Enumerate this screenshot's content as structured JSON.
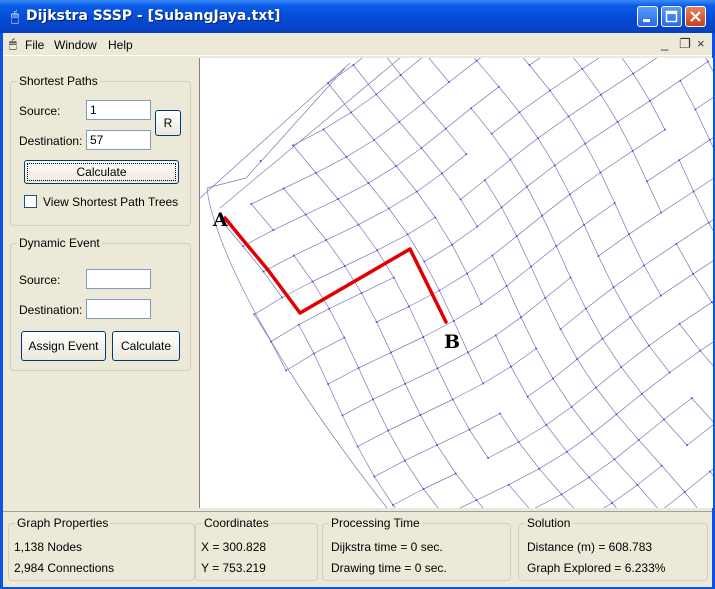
{
  "window": {
    "title": "Dijkstra SSSP - [SubangJaya.txt]",
    "app_icon": "mouse-icon",
    "titlebar_color": "#0a54e3"
  },
  "menu": {
    "items": [
      "File",
      "Window",
      "Help"
    ],
    "mdi_controls": [
      "_",
      "❐",
      "×"
    ]
  },
  "shortest_paths": {
    "legend": "Shortest Paths",
    "source_label": "Source:",
    "source_value": "1",
    "destination_label": "Destination:",
    "destination_value": "57",
    "r_button": "R",
    "calculate_button": "Calculate",
    "view_trees_label": "View Shortest Path Trees",
    "view_trees_checked": false
  },
  "dynamic_event": {
    "legend": "Dynamic Event",
    "source_label": "Source:",
    "source_value": "",
    "destination_label": "Destination:",
    "destination_value": "",
    "assign_button": "Assign Event",
    "calculate_button": "Calculate"
  },
  "map": {
    "start_label": "A",
    "end_label": "B",
    "path_color": "#e00000",
    "road_color": "#7a7ab8"
  },
  "status": {
    "graph_properties": {
      "legend": "Graph Properties",
      "nodes": "1,138 Nodes",
      "connections": "2,984 Connections"
    },
    "coordinates": {
      "legend": "Coordinates",
      "x": "X = 300.828",
      "y": "Y = 753.219"
    },
    "processing_time": {
      "legend": "Processing Time",
      "dijkstra": "Dijkstra time = 0 sec.",
      "drawing": "Drawing time = 0 sec."
    },
    "solution": {
      "legend": "Solution",
      "distance": "Distance (m) = 608.783",
      "explored": "Graph Explored = 6.233%"
    }
  }
}
